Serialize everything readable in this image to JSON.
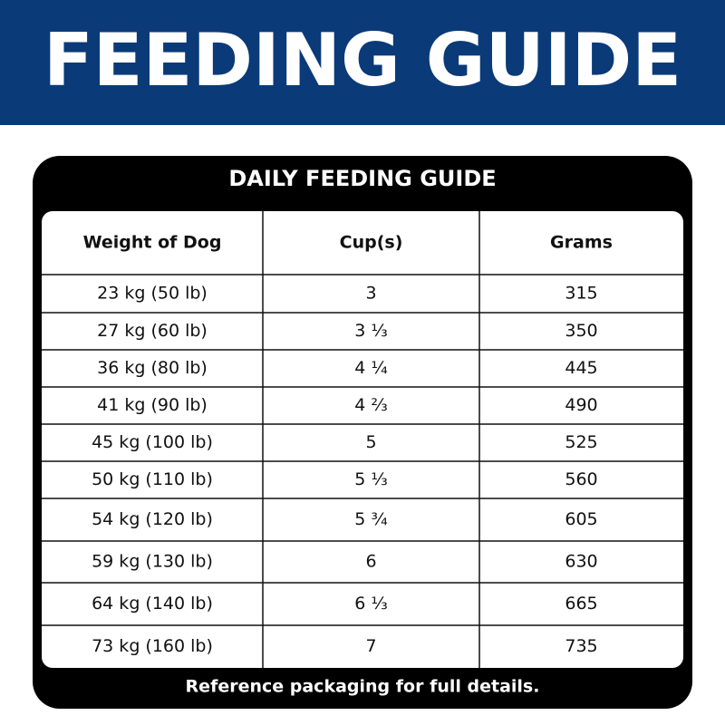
{
  "header": {
    "title": "FEEDING GUIDE"
  },
  "table": {
    "title": "DAILY FEEDING GUIDE",
    "columns": [
      "Weight of Dog",
      "Cup(s)",
      "Grams"
    ],
    "rows": [
      [
        "23 kg (50 lb)",
        "3",
        "315"
      ],
      [
        "27 kg (60 lb)",
        "3 ⅓",
        "350"
      ],
      [
        "36 kg (80 lb)",
        "4 ¼",
        "445"
      ],
      [
        "41 kg (90 lb)",
        "4 ⅔",
        "490"
      ],
      [
        "45 kg (100 lb)",
        "5",
        "525"
      ],
      [
        "50 kg (110 lb)",
        "5 ⅓",
        "560"
      ],
      [
        "54 kg (120 lb)",
        "5 ¾",
        "605"
      ],
      [
        "59 kg (130 lb)",
        "6",
        "630"
      ],
      [
        "64 kg (140 lb)",
        "6 ⅓",
        "665"
      ],
      [
        "73 kg (160 lb)",
        "7",
        "735"
      ]
    ]
  },
  "footer": {
    "note": "Reference packaging for full details."
  }
}
